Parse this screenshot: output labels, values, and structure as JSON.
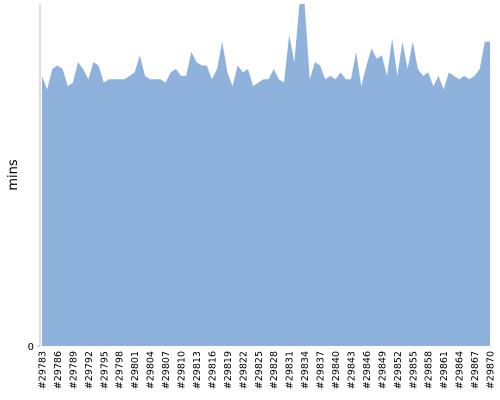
{
  "chart_data": {
    "type": "area",
    "ylabel": "mins",
    "color": "#8fb2dc",
    "categories": [
      "#29783",
      null,
      null,
      "#29786",
      null,
      null,
      "#29789",
      null,
      null,
      "#29792",
      null,
      null,
      "#29795",
      null,
      null,
      "#29798",
      null,
      null,
      "#29801",
      null,
      null,
      "#29804",
      null,
      null,
      "#29807",
      null,
      null,
      "#29810",
      null,
      null,
      "#29813",
      null,
      null,
      "#29816",
      null,
      null,
      "#29819",
      null,
      null,
      "#29822",
      null,
      null,
      "#29825",
      null,
      null,
      "#29828",
      null,
      null,
      "#29831",
      null,
      null,
      "#29834",
      null,
      null,
      "#29837",
      null,
      null,
      "#29840",
      null,
      null,
      "#29843",
      null,
      null,
      "#29846",
      null,
      null,
      "#29849",
      null,
      null,
      "#29852",
      null,
      null,
      "#29855",
      null,
      null,
      "#29858",
      null,
      null,
      "#29861",
      null,
      null,
      "#29864",
      null,
      null,
      "#29867",
      null,
      null,
      "#29870"
    ],
    "values": [
      79,
      75,
      81,
      82,
      81,
      76,
      77,
      83,
      81,
      78,
      83,
      82,
      77,
      78,
      78,
      78,
      78,
      79,
      80,
      85,
      79,
      78,
      78,
      78,
      77,
      80,
      81,
      79,
      79,
      86,
      83,
      82,
      82,
      78,
      81,
      89,
      80,
      76,
      82,
      80,
      81,
      76,
      77,
      78,
      78,
      81,
      78,
      77,
      91,
      83,
      100,
      100,
      78,
      83,
      82,
      78,
      79,
      78,
      80,
      78,
      78,
      86,
      76,
      82,
      87,
      84,
      85,
      79,
      90,
      79,
      89,
      81,
      89,
      81,
      79,
      80,
      76,
      79,
      75,
      80,
      79,
      78,
      79,
      78,
      79,
      81,
      89,
      89
    ],
    "ylim": [
      0,
      100
    ],
    "yticks": [
      0
    ]
  }
}
